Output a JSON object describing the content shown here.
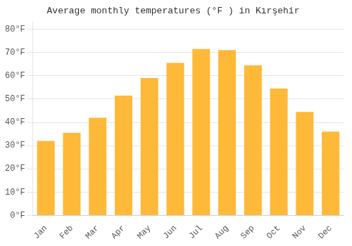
{
  "chart_data": {
    "type": "bar",
    "title": "Average monthly temperatures (°F ) in Kırşehir",
    "categories": [
      "Jan",
      "Feb",
      "Mar",
      "Apr",
      "May",
      "Jun",
      "Jul",
      "Aug",
      "Sep",
      "Oct",
      "Nov",
      "Dec"
    ],
    "values": [
      32,
      35.5,
      42,
      51.5,
      59,
      65.5,
      71.5,
      71,
      64.5,
      54.5,
      44.5,
      36
    ],
    "color": "#FFB938",
    "ylim": [
      0,
      83
    ],
    "yticks": [
      {
        "value": 0,
        "label": "0°F"
      },
      {
        "value": 10,
        "label": "10°F"
      },
      {
        "value": 20,
        "label": "20°F"
      },
      {
        "value": 30,
        "label": "30°F"
      },
      {
        "value": 40,
        "label": "40°F"
      },
      {
        "value": 50,
        "label": "50°F"
      },
      {
        "value": 60,
        "label": "60°F"
      },
      {
        "value": 70,
        "label": "70°F"
      },
      {
        "value": 80,
        "label": "80°F"
      }
    ],
    "grid": true
  }
}
